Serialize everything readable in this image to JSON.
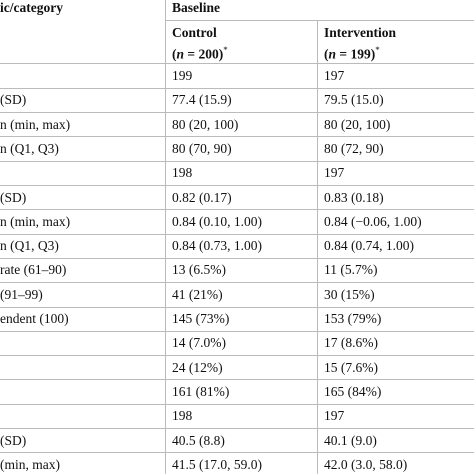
{
  "table": {
    "header": {
      "stub": "ic/category",
      "group": "Baseline",
      "columns": [
        {
          "name": "Control",
          "open": "(",
          "var": "n",
          "count": " = 200)",
          "note": "*"
        },
        {
          "name": "Intervention",
          "open": "(",
          "var": "n",
          "count": " = 199)",
          "note": "*"
        }
      ]
    },
    "rows": [
      [
        null,
        "199",
        "197"
      ],
      [
        "(SD)",
        "77.4 (15.9)",
        "79.5 (15.0)"
      ],
      [
        "n (min, max)",
        "80 (20, 100)",
        "80 (20, 100)"
      ],
      [
        "n (Q1, Q3)",
        "80 (70, 90)",
        "80 (72, 90)"
      ],
      [
        null,
        "198",
        "197"
      ],
      [
        "(SD)",
        "0.82 (0.17)",
        "0.83 (0.18)"
      ],
      [
        "n (min, max)",
        "0.84 (0.10, 1.00)",
        "0.84 (−0.06, 1.00)"
      ],
      [
        "n (Q1, Q3)",
        "0.84 (0.73, 1.00)",
        "0.84 (0.74, 1.00)"
      ],
      [
        "rate (61–90)",
        "13 (6.5%)",
        "11 (5.7%)"
      ],
      [
        "(91–99)",
        "41 (21%)",
        "30 (15%)"
      ],
      [
        "endent (100)",
        "145 (73%)",
        "153 (79%)"
      ],
      [
        null,
        "14 (7.0%)",
        "17 (8.6%)"
      ],
      [
        null,
        "24 (12%)",
        "15 (7.6%)"
      ],
      [
        null,
        "161 (81%)",
        "165 (84%)"
      ],
      [
        null,
        "198",
        "197"
      ],
      [
        "(SD)",
        "40.5 (8.8)",
        "40.1 (9.0)"
      ],
      [
        "(min, max)",
        "41.5 (17.0, 59.0)",
        "42.0 (3.0, 58.0)"
      ]
    ]
  }
}
